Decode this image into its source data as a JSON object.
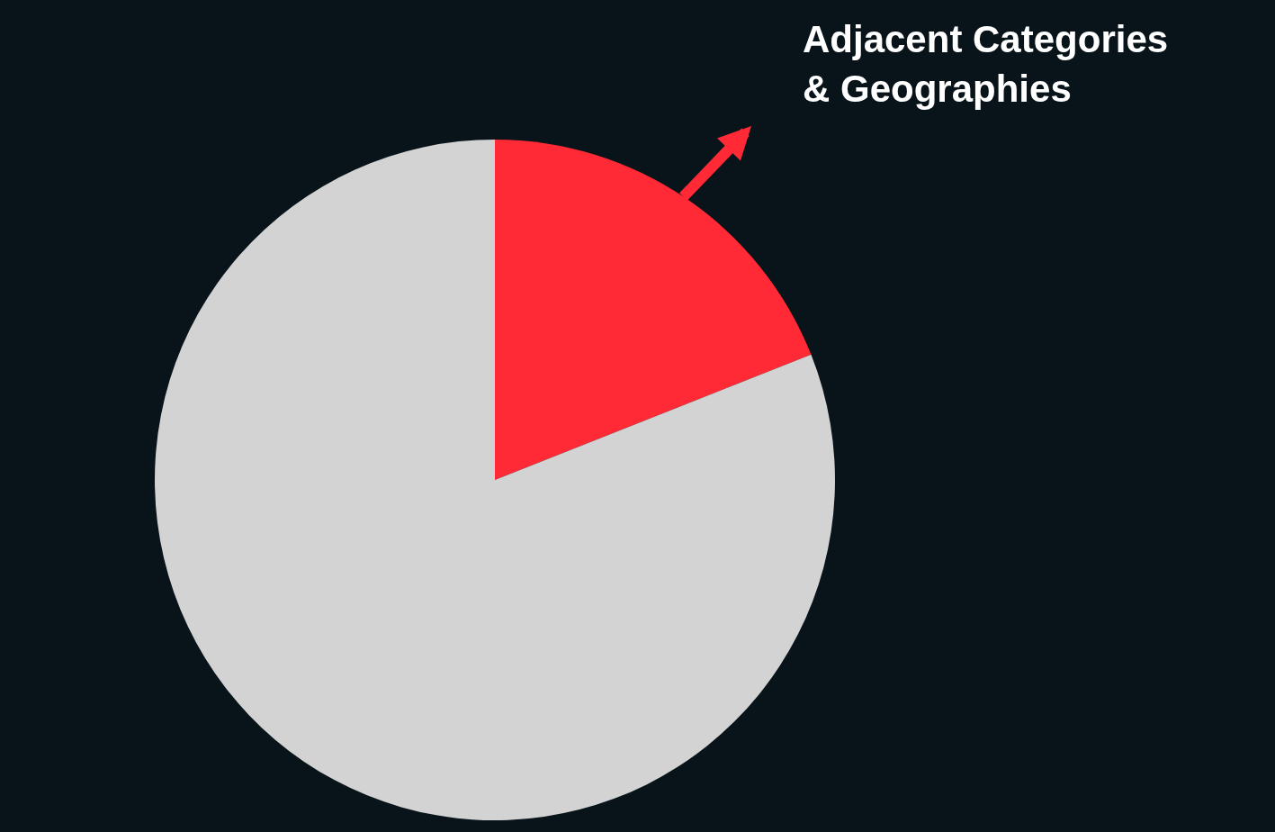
{
  "chart_data": {
    "type": "pie",
    "categories": [
      "Adjacent Categories & Geographies",
      null
    ],
    "values": [
      19,
      81
    ],
    "colors": [
      "#ff2a35",
      "#d3d3d3"
    ]
  }
}
